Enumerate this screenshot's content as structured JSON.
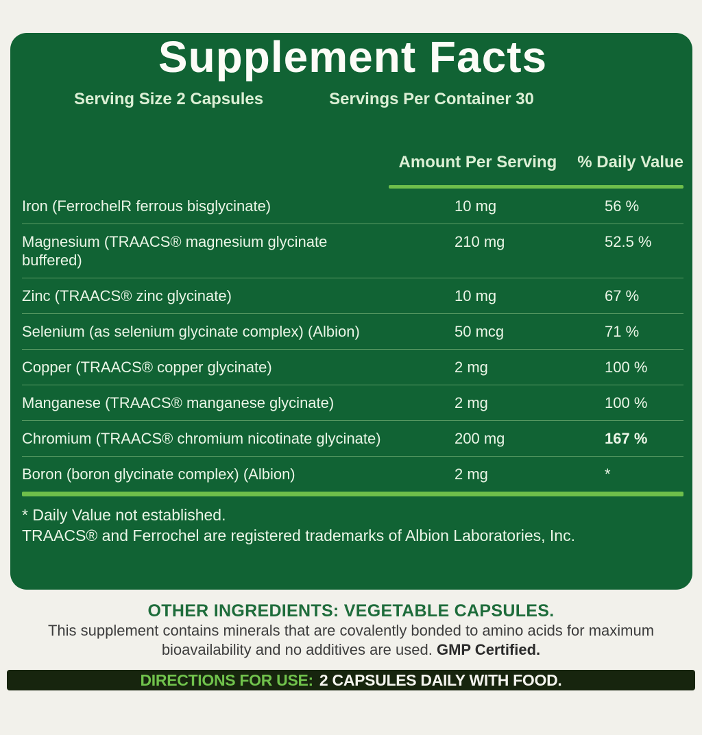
{
  "panel": {
    "title": "Supplement Facts",
    "serving_size": "Serving Size 2 Capsules",
    "servings_per_container": "Servings Per Container 30",
    "columns": {
      "amount": "Amount Per Serving",
      "daily_value": "% Daily Value"
    },
    "rows": [
      {
        "name": "Iron (FerrochelR ferrous bisglycinate)",
        "amount": "10 mg",
        "dv": "56 %"
      },
      {
        "name": "Magnesium (TRAACS® magnesium glycinate",
        "name_line2": "buffered)",
        "amount": "210 mg",
        "dv": "52.5 %"
      },
      {
        "name": "Zinc (TRAACS® zinc glycinate)",
        "amount": "10 mg",
        "dv": "67 %"
      },
      {
        "name": "Selenium (as selenium glycinate complex) (Albion)",
        "amount": "50 mcg",
        "dv": "71 %"
      },
      {
        "name": "Copper (TRAACS® copper glycinate)",
        "amount": "2 mg",
        "dv": "100 %"
      },
      {
        "name": "Manganese (TRAACS® manganese glycinate)",
        "amount": "2 mg",
        "dv": "100 %"
      },
      {
        "name": "Chromium (TRAACS® chromium nicotinate glycinate)",
        "amount": "200 mg",
        "dv": "167 %"
      },
      {
        "name": "Boron (boron glycinate complex) (Albion)",
        "amount": "2 mg",
        "dv": "*"
      }
    ],
    "footnotes": {
      "daily_value": "* Daily Value not established.",
      "trademark": "TRAACS® and Ferrochel are registered trademarks of Albion Laboratories, Inc."
    }
  },
  "other_ingredients": {
    "heading": "OTHER INGREDIENTS: VEGETABLE CAPSULES.",
    "body": "This supplement contains minerals that are covalently bonded to amino acids for maximum bioavailability and no additives are used.",
    "body_bold": "GMP Certified."
  },
  "directions": {
    "label": "DIRECTIONS FOR USE:",
    "text": "2 CAPSULES DAILY WITH FOOD."
  },
  "colors": {
    "page_background": "#F2F1EB",
    "panel_green": "#116334",
    "pale_green_text": "#DCEFD5",
    "row_text": "#EAF5E6",
    "accent_line_green": "#6FBF4B",
    "heading_green": "#1E6C3B",
    "directions_bar": "#17250E",
    "directions_label_green": "#70C24C"
  }
}
